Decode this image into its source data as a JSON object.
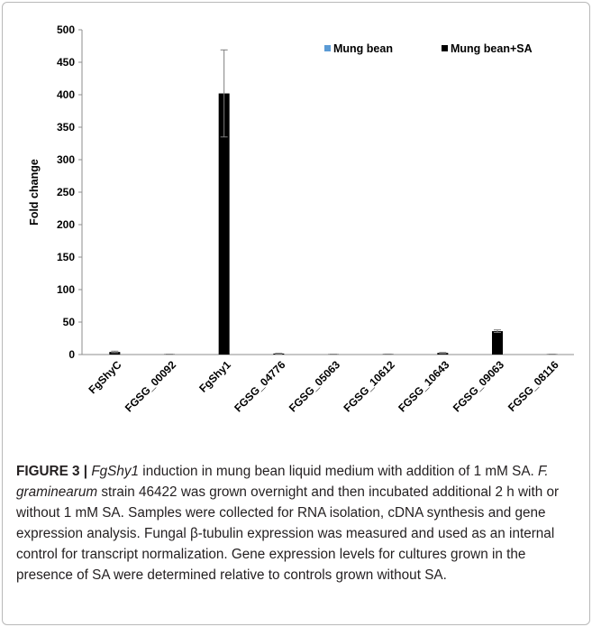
{
  "chart_data": {
    "type": "bar",
    "categories": [
      "FgShyC",
      "FGSG_00092",
      "FgShy1",
      "FGSG_04776",
      "FGSG_05063",
      "FGSG_10612",
      "FGSG_10643",
      "FGSG_09063",
      "FGSG_08116"
    ],
    "series": [
      {
        "name": "Mung bean",
        "color": "#5b9bd5",
        "values": [
          0,
          0,
          0,
          0,
          0,
          0,
          0,
          0,
          0
        ],
        "errors": [
          0,
          0,
          0,
          0,
          0,
          0,
          0,
          0,
          0
        ]
      },
      {
        "name": "Mung bean+SA",
        "color": "#000000",
        "values": [
          4,
          0.4,
          402,
          1.5,
          0.4,
          0.6,
          2.5,
          36,
          0.4
        ],
        "errors": [
          1.2,
          0.2,
          67,
          0.6,
          0.2,
          0.2,
          0.8,
          2,
          0.2
        ]
      }
    ],
    "ylabel": "Fold change",
    "ylim": [
      0,
      500
    ],
    "yticks": [
      0,
      50,
      100,
      150,
      200,
      250,
      300,
      350,
      400,
      450,
      500
    ],
    "grid": false,
    "legend_position": "top-right"
  },
  "caption": {
    "label": "FIGURE 3 | ",
    "italic_gene": "FgShy1",
    "text1": " induction in mung bean liquid medium with addition of 1 mM SA. ",
    "italic_species": "F. graminearum",
    "text2": " strain 46422 was grown overnight and then incubated additional 2 h with or without 1 mM SA. Samples were collected for RNA isolation, cDNA synthesis and gene expression analysis. Fungal β-tubulin expression was measured and used as an internal control for transcript normalization. Gene expression levels for cultures grown in the presence of SA were determined relative to controls grown without SA."
  }
}
